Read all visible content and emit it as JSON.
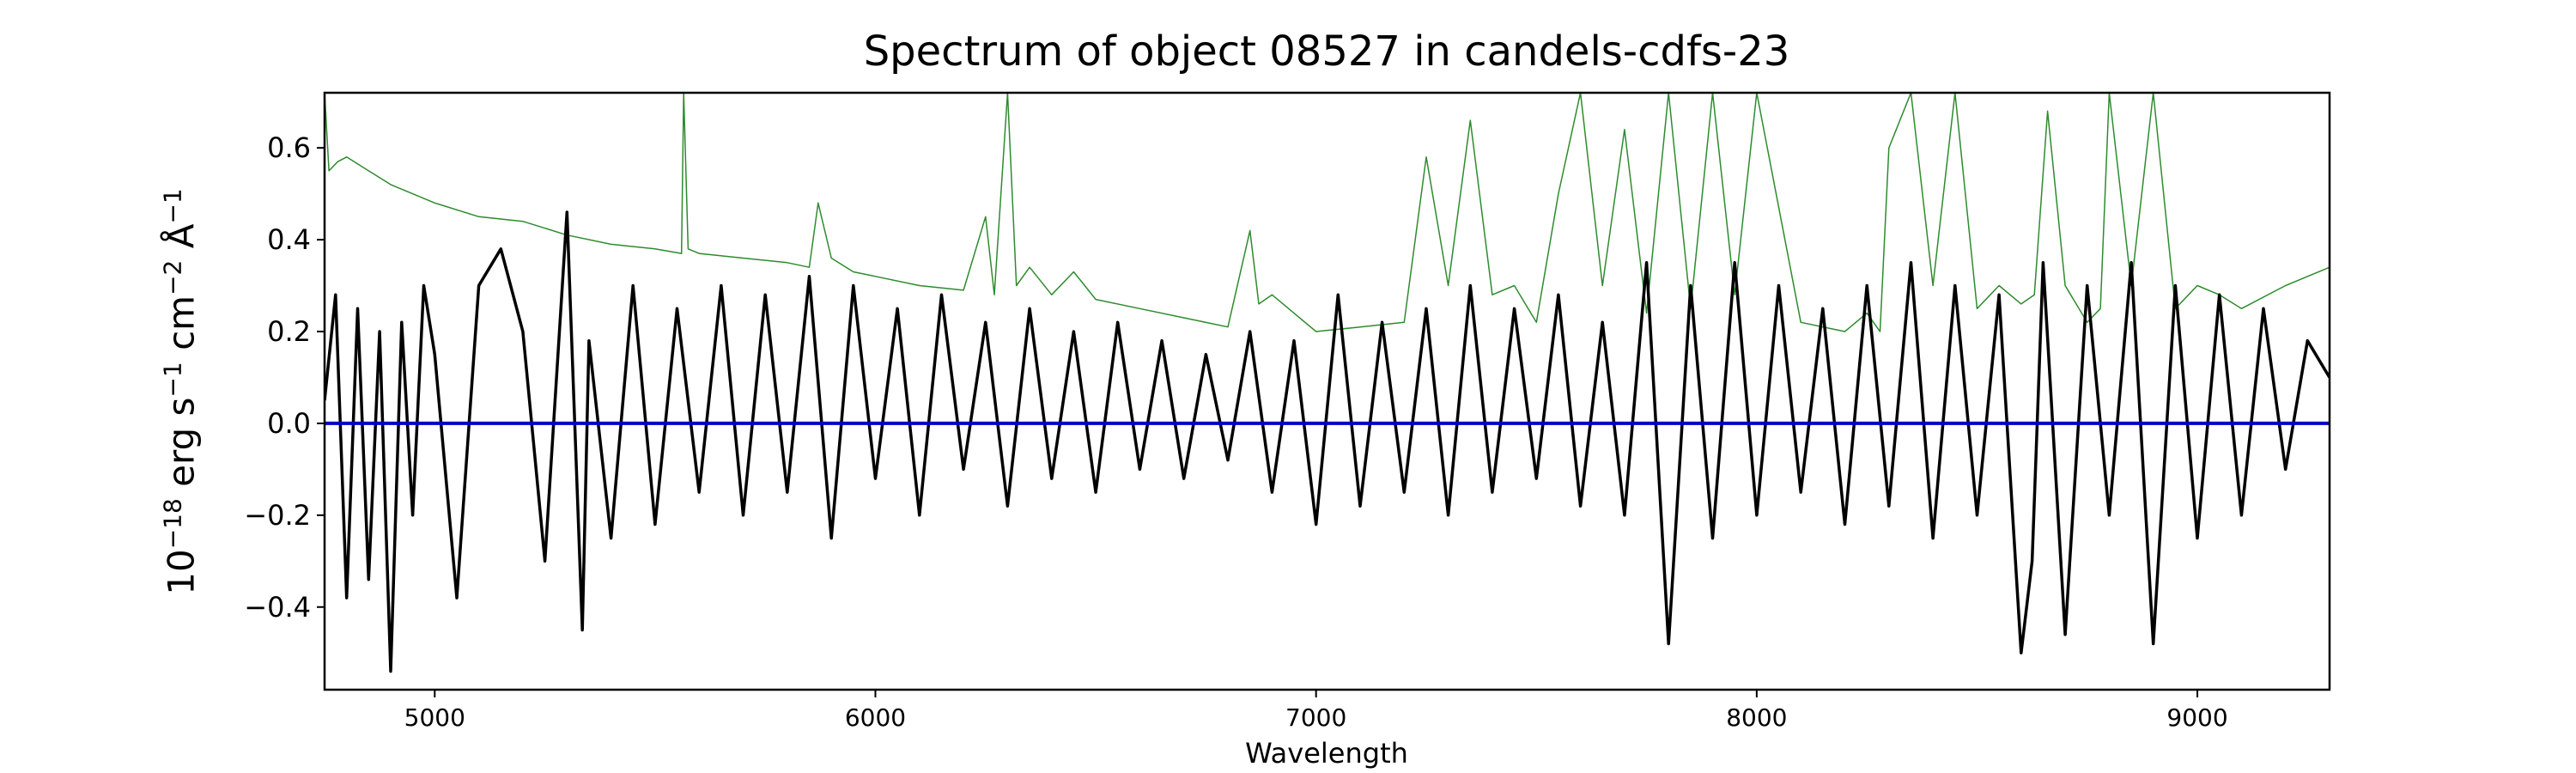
{
  "chart_data": {
    "type": "line",
    "title": "Spectrum of object 08527 in candels-cdfs-23",
    "xlabel": "Wavelength",
    "ylabel": {
      "base": "10",
      "exp": "−18",
      "text1": " erg s",
      "exp2": "−1",
      "text2": " cm",
      "exp3": "−2",
      "text3": " Å",
      "exp4": "−1"
    },
    "xlim": [
      4750,
      9300
    ],
    "ylim": [
      -0.58,
      0.72
    ],
    "xticks": [
      5000,
      6000,
      7000,
      8000,
      9000
    ],
    "yticks": [
      -0.4,
      -0.2,
      0.0,
      0.2,
      0.4,
      0.6
    ],
    "ytick_labels": [
      "−0.4",
      "−0.2",
      "0.0",
      "0.2",
      "0.4",
      "0.6"
    ],
    "grid": false,
    "series": [
      {
        "role": "flux",
        "color": "#000000",
        "x": [
          4750,
          4775,
          4800,
          4825,
          4850,
          4875,
          4900,
          4925,
          4950,
          4975,
          5000,
          5050,
          5100,
          5150,
          5200,
          5250,
          5300,
          5335,
          5350,
          5400,
          5450,
          5500,
          5550,
          5600,
          5650,
          5700,
          5750,
          5800,
          5850,
          5900,
          5950,
          6000,
          6050,
          6100,
          6150,
          6200,
          6250,
          6300,
          6350,
          6400,
          6450,
          6500,
          6550,
          6600,
          6650,
          6700,
          6750,
          6800,
          6850,
          6900,
          6950,
          7000,
          7050,
          7100,
          7150,
          7200,
          7250,
          7300,
          7350,
          7400,
          7450,
          7500,
          7550,
          7600,
          7650,
          7700,
          7750,
          7800,
          7850,
          7900,
          7950,
          8000,
          8050,
          8100,
          8150,
          8200,
          8250,
          8300,
          8350,
          8400,
          8450,
          8500,
          8550,
          8600,
          8625,
          8650,
          8700,
          8750,
          8800,
          8850,
          8900,
          8950,
          9000,
          9050,
          9100,
          9150,
          9200,
          9250,
          9300
        ],
        "y": [
          0.05,
          0.28,
          -0.38,
          0.25,
          -0.34,
          0.2,
          -0.54,
          0.22,
          -0.2,
          0.3,
          0.15,
          -0.38,
          0.3,
          0.38,
          0.2,
          -0.3,
          0.46,
          -0.45,
          0.18,
          -0.25,
          0.3,
          -0.22,
          0.25,
          -0.15,
          0.3,
          -0.2,
          0.28,
          -0.15,
          0.32,
          -0.25,
          0.3,
          -0.12,
          0.25,
          -0.2,
          0.28,
          -0.1,
          0.22,
          -0.18,
          0.25,
          -0.12,
          0.2,
          -0.15,
          0.22,
          -0.1,
          0.18,
          -0.12,
          0.15,
          -0.08,
          0.2,
          -0.15,
          0.18,
          -0.22,
          0.28,
          -0.18,
          0.22,
          -0.15,
          0.25,
          -0.2,
          0.3,
          -0.15,
          0.25,
          -0.12,
          0.28,
          -0.18,
          0.22,
          -0.2,
          0.35,
          -0.48,
          0.3,
          -0.25,
          0.35,
          -0.2,
          0.3,
          -0.15,
          0.25,
          -0.22,
          0.3,
          -0.18,
          0.35,
          -0.25,
          0.3,
          -0.2,
          0.28,
          -0.5,
          -0.3,
          0.35,
          -0.46,
          0.3,
          -0.2,
          0.35,
          -0.48,
          0.3,
          -0.25,
          0.28,
          -0.2,
          0.25,
          -0.1,
          0.18,
          0.1
        ]
      },
      {
        "role": "noise",
        "color": "#2e8b2e",
        "x": [
          4750,
          4760,
          4780,
          4800,
          4850,
          4900,
          5000,
          5100,
          5200,
          5300,
          5400,
          5500,
          5560,
          5565,
          5575,
          5600,
          5700,
          5800,
          5850,
          5870,
          5900,
          5950,
          6000,
          6100,
          6200,
          6250,
          6270,
          6300,
          6320,
          6350,
          6400,
          6450,
          6500,
          6600,
          6700,
          6800,
          6850,
          6870,
          6900,
          6950,
          7000,
          7100,
          7200,
          7250,
          7300,
          7350,
          7400,
          7450,
          7500,
          7550,
          7600,
          7650,
          7700,
          7750,
          7800,
          7850,
          7900,
          7950,
          8000,
          8100,
          8200,
          8250,
          8280,
          8300,
          8350,
          8400,
          8450,
          8500,
          8550,
          8600,
          8630,
          8660,
          8700,
          8750,
          8780,
          8800,
          8850,
          8900,
          8950,
          9000,
          9050,
          9100,
          9200,
          9300
        ],
        "y": [
          0.72,
          0.55,
          0.57,
          0.58,
          0.55,
          0.52,
          0.48,
          0.45,
          0.44,
          0.41,
          0.39,
          0.38,
          0.37,
          0.72,
          0.38,
          0.37,
          0.36,
          0.35,
          0.34,
          0.48,
          0.36,
          0.33,
          0.32,
          0.3,
          0.29,
          0.45,
          0.28,
          0.72,
          0.3,
          0.34,
          0.28,
          0.33,
          0.27,
          0.25,
          0.23,
          0.21,
          0.42,
          0.26,
          0.28,
          0.24,
          0.2,
          0.21,
          0.22,
          0.58,
          0.3,
          0.66,
          0.28,
          0.3,
          0.22,
          0.5,
          0.72,
          0.3,
          0.64,
          0.24,
          0.72,
          0.25,
          0.72,
          0.28,
          0.72,
          0.22,
          0.2,
          0.24,
          0.2,
          0.6,
          0.72,
          0.3,
          0.72,
          0.25,
          0.3,
          0.26,
          0.28,
          0.68,
          0.3,
          0.22,
          0.25,
          0.72,
          0.3,
          0.72,
          0.25,
          0.3,
          0.28,
          0.25,
          0.3,
          0.34
        ]
      },
      {
        "role": "zero-line",
        "color": "#0000cc",
        "x": [
          4750,
          9300
        ],
        "y": [
          0.0,
          0.0
        ]
      }
    ]
  }
}
